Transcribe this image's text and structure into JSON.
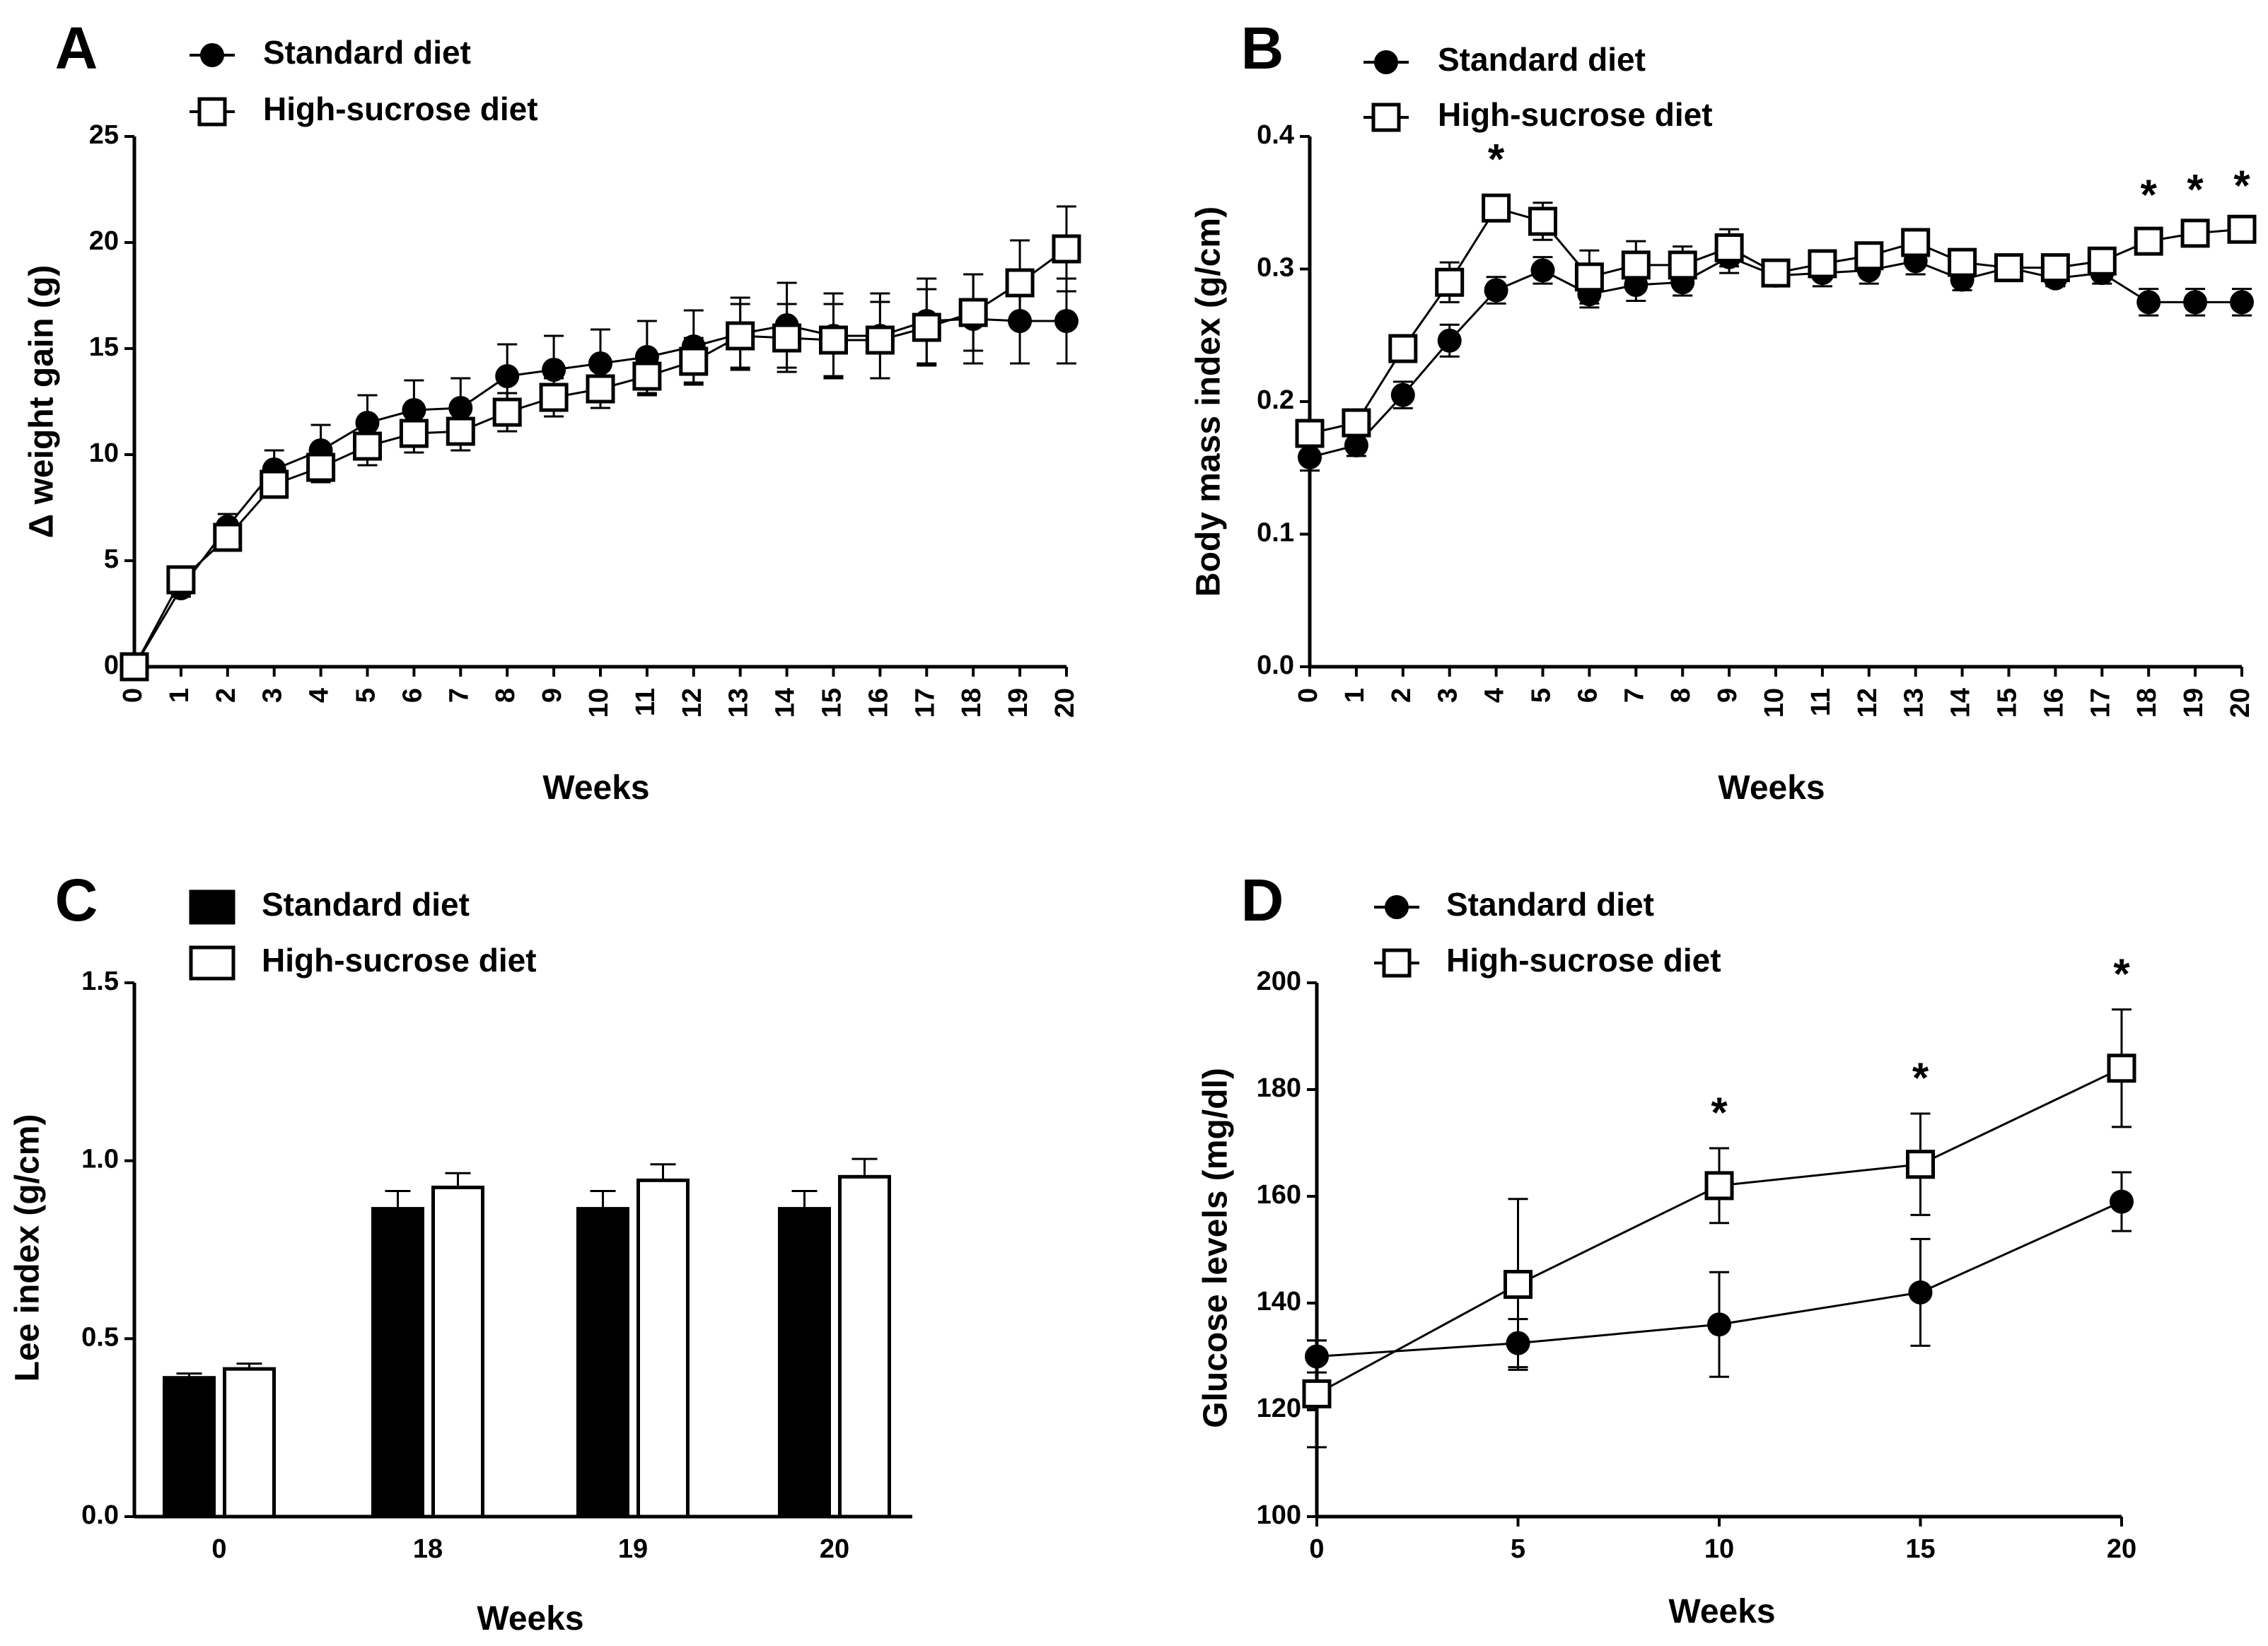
{
  "chart_data": [
    {
      "panel": "A",
      "type": "line",
      "xlabel": "Weeks",
      "ylabel": "Δ weight gain (g)",
      "xlim": [
        0,
        20
      ],
      "ylim": [
        0,
        25
      ],
      "x_ticks": [
        "0",
        "1",
        "2",
        "3",
        "4",
        "5",
        "6",
        "7",
        "8",
        "9",
        "10",
        "11",
        "12",
        "13",
        "14",
        "15",
        "16",
        "17",
        "18",
        "19",
        "20"
      ],
      "y_ticks": [
        "0",
        "5",
        "10",
        "15",
        "20",
        "25"
      ],
      "x": [
        0,
        1,
        2,
        3,
        4,
        5,
        6,
        7,
        8,
        9,
        10,
        11,
        12,
        13,
        14,
        15,
        16,
        17,
        18,
        19,
        20
      ],
      "series": [
        {
          "name": "Standard diet",
          "marker": "circle",
          "values": [
            0,
            3.7,
            6.6,
            9.3,
            10.2,
            11.5,
            12.1,
            12.2,
            13.7,
            14.0,
            14.3,
            14.6,
            15.1,
            15.7,
            16.1,
            15.6,
            15.6,
            16.3,
            16.4,
            16.3,
            16.3
          ],
          "errors": [
            0,
            0.4,
            0.6,
            0.9,
            1.2,
            1.3,
            1.4,
            1.4,
            1.5,
            1.6,
            1.6,
            1.7,
            1.7,
            1.7,
            2.0,
            2.0,
            2.0,
            2.0,
            2.1,
            2.0,
            2.0
          ]
        },
        {
          "name": "High-sucrose diet",
          "marker": "square",
          "values": [
            0,
            4.1,
            6.1,
            8.6,
            9.4,
            10.4,
            11.0,
            11.1,
            12.0,
            12.7,
            13.1,
            13.7,
            14.4,
            15.6,
            15.5,
            15.4,
            15.4,
            16.0,
            16.7,
            18.1,
            19.7
          ],
          "errors": [
            0,
            0.3,
            0.5,
            0.6,
            0.7,
            0.9,
            0.9,
            0.9,
            0.9,
            0.9,
            0.9,
            0.9,
            1.1,
            1.5,
            1.6,
            1.7,
            1.8,
            1.8,
            1.8,
            2.0,
            2.0
          ]
        }
      ],
      "significance": []
    },
    {
      "panel": "B",
      "type": "line",
      "xlabel": "Weeks",
      "ylabel": "Body mass index (g/cm)",
      "xlim": [
        0,
        20
      ],
      "ylim": [
        0,
        0.4
      ],
      "x_ticks": [
        "0",
        "1",
        "2",
        "3",
        "4",
        "5",
        "6",
        "7",
        "8",
        "9",
        "10",
        "11",
        "12",
        "13",
        "14",
        "15",
        "16",
        "17",
        "18",
        "19",
        "20"
      ],
      "y_ticks": [
        "0.0",
        "0.1",
        "0.2",
        "0.3",
        "0.4"
      ],
      "x": [
        0,
        1,
        2,
        3,
        4,
        5,
        6,
        7,
        8,
        9,
        10,
        11,
        12,
        13,
        14,
        15,
        16,
        17,
        18,
        19,
        20
      ],
      "series": [
        {
          "name": "Standard diet",
          "marker": "circle",
          "values": [
            0.158,
            0.167,
            0.205,
            0.246,
            0.284,
            0.299,
            0.281,
            0.288,
            0.29,
            0.309,
            0.295,
            0.297,
            0.299,
            0.306,
            0.292,
            0.301,
            0.293,
            0.297,
            0.275,
            0.275,
            0.275
          ],
          "errors": [
            0.01,
            0.008,
            0.01,
            0.012,
            0.01,
            0.01,
            0.01,
            0.012,
            0.01,
            0.012,
            0.008,
            0.01,
            0.01,
            0.01,
            0.008,
            0.008,
            0.006,
            0.008,
            0.01,
            0.01,
            0.01
          ]
        },
        {
          "name": "High-sucrose diet",
          "marker": "square",
          "values": [
            0.176,
            0.184,
            0.24,
            0.29,
            0.346,
            0.336,
            0.294,
            0.303,
            0.303,
            0.316,
            0.297,
            0.304,
            0.31,
            0.32,
            0.305,
            0.301,
            0.301,
            0.306,
            0.321,
            0.327,
            0.33
          ],
          "errors": [
            0.008,
            0.006,
            0.008,
            0.015,
            0.01,
            0.014,
            0.02,
            0.018,
            0.014,
            0.014,
            0.008,
            0.006,
            0.006,
            0.006,
            0.004,
            0.004,
            0.004,
            0.006,
            0.008,
            0.006,
            0.006
          ]
        }
      ],
      "significance": [
        {
          "x": 4,
          "value": 0.346,
          "label": "*"
        },
        {
          "x": 18,
          "value": 0.321,
          "label": "*"
        },
        {
          "x": 19,
          "value": 0.327,
          "label": "*"
        },
        {
          "x": 20,
          "value": 0.33,
          "label": "*"
        }
      ]
    },
    {
      "panel": "C",
      "type": "bar",
      "xlabel": "Weeks",
      "ylabel": "Lee index (g/cm)",
      "ylim": [
        0,
        1.5
      ],
      "y_ticks": [
        "0.0",
        "0.5",
        "1.0",
        "1.5"
      ],
      "categories": [
        "0",
        "18",
        "19",
        "20"
      ],
      "series": [
        {
          "name": "Standard diet",
          "fill": "black",
          "values": [
            0.39,
            0.865,
            0.865,
            0.865
          ],
          "errors": [
            0.012,
            0.05,
            0.05,
            0.05
          ]
        },
        {
          "name": "High-sucrose diet",
          "fill": "white",
          "values": [
            0.415,
            0.925,
            0.945,
            0.955
          ],
          "errors": [
            0.015,
            0.04,
            0.045,
            0.05
          ]
        }
      ]
    },
    {
      "panel": "D",
      "type": "line",
      "xlabel": "Weeks",
      "ylabel": "Glucose levels (mg/dl)",
      "xlim": [
        0,
        20
      ],
      "ylim": [
        100,
        200
      ],
      "x_ticks": [
        "0",
        "5",
        "10",
        "15",
        "20"
      ],
      "y_ticks": [
        "100",
        "120",
        "140",
        "160",
        "180",
        "200"
      ],
      "x": [
        0,
        5,
        10,
        15,
        20
      ],
      "series": [
        {
          "name": "Standard diet",
          "marker": "circle",
          "values": [
            130,
            132.5,
            136,
            142,
            159
          ],
          "errors": [
            3,
            4.5,
            9.8,
            10,
            5.5
          ]
        },
        {
          "name": "High-sucrose diet",
          "marker": "square",
          "values": [
            123,
            143.5,
            162,
            166,
            184
          ],
          "errors": [
            10,
            16,
            7,
            9.5,
            11
          ]
        }
      ],
      "significance": [
        {
          "x": 10,
          "value": 162,
          "label": "*"
        },
        {
          "x": 15,
          "value": 166,
          "label": "*"
        },
        {
          "x": 20,
          "value": 184,
          "label": "*"
        }
      ]
    }
  ]
}
